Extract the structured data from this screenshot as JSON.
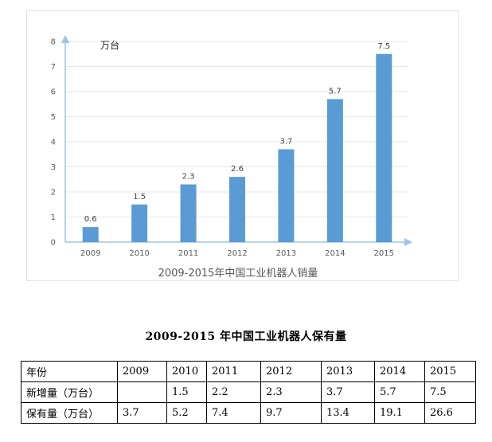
{
  "chart_data": {
    "type": "bar",
    "title": "2009-2015年中国工业机器人销量",
    "unit_label": "万台",
    "categories": [
      "2009",
      "2010",
      "2011",
      "2012",
      "2013",
      "2014",
      "2015"
    ],
    "values": [
      0.6,
      1.5,
      2.3,
      2.6,
      3.7,
      5.7,
      7.5
    ],
    "data_labels": [
      "0.6",
      "1.5",
      "2.3",
      "2.6",
      "3.7",
      "5.7",
      "7.5"
    ],
    "ylim": [
      0,
      8
    ],
    "yticks": [
      "0",
      "1",
      "2",
      "3",
      "4",
      "5",
      "6",
      "7",
      "8"
    ],
    "grid": true,
    "bar_color": "#5b9bd5",
    "axis_color": "#9dc3e6"
  },
  "table": {
    "title": "2009-2015 年中国工业机器人保有量",
    "header_label": "年份",
    "years": [
      "2009",
      "2010",
      "2011",
      "2012",
      "2013",
      "2014",
      "2015"
    ],
    "rows": [
      {
        "label": "新增量（万台）",
        "values": [
          "",
          "1.5",
          "2.2",
          "2.3",
          "3.7",
          "5.7",
          "7.5"
        ]
      },
      {
        "label": "保有量（万台）",
        "values": [
          "3.7",
          "5.2",
          "7.4",
          "9.7",
          "13.4",
          "19.1",
          "26.6"
        ]
      }
    ]
  }
}
